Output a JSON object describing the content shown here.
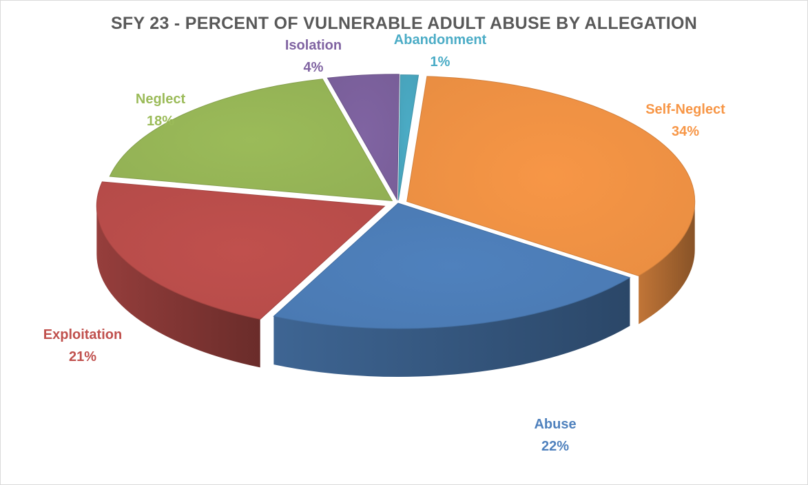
{
  "chart_data": {
    "type": "pie",
    "title": "SFY 23 - PERCENT OF VULNERABLE ADULT ABUSE BY ALLEGATION",
    "slices": [
      {
        "name": "Self-Neglect",
        "value": 34,
        "label": "34%",
        "color": "#f79646"
      },
      {
        "name": "Abuse",
        "value": 22,
        "label": "22%",
        "color": "#4f81bd"
      },
      {
        "name": "Exploitation",
        "value": 21,
        "label": "21%",
        "color": "#c0504d"
      },
      {
        "name": "Neglect",
        "value": 18,
        "label": "18%",
        "color": "#9bbb59"
      },
      {
        "name": "Isolation",
        "value": 4,
        "label": "4%",
        "color": "#8064a2"
      },
      {
        "name": "Abandonment",
        "value": 1,
        "label": "1%",
        "color": "#4bacc6"
      }
    ],
    "style": "3d-exploded",
    "legend": "none",
    "data_labels": "outside"
  }
}
